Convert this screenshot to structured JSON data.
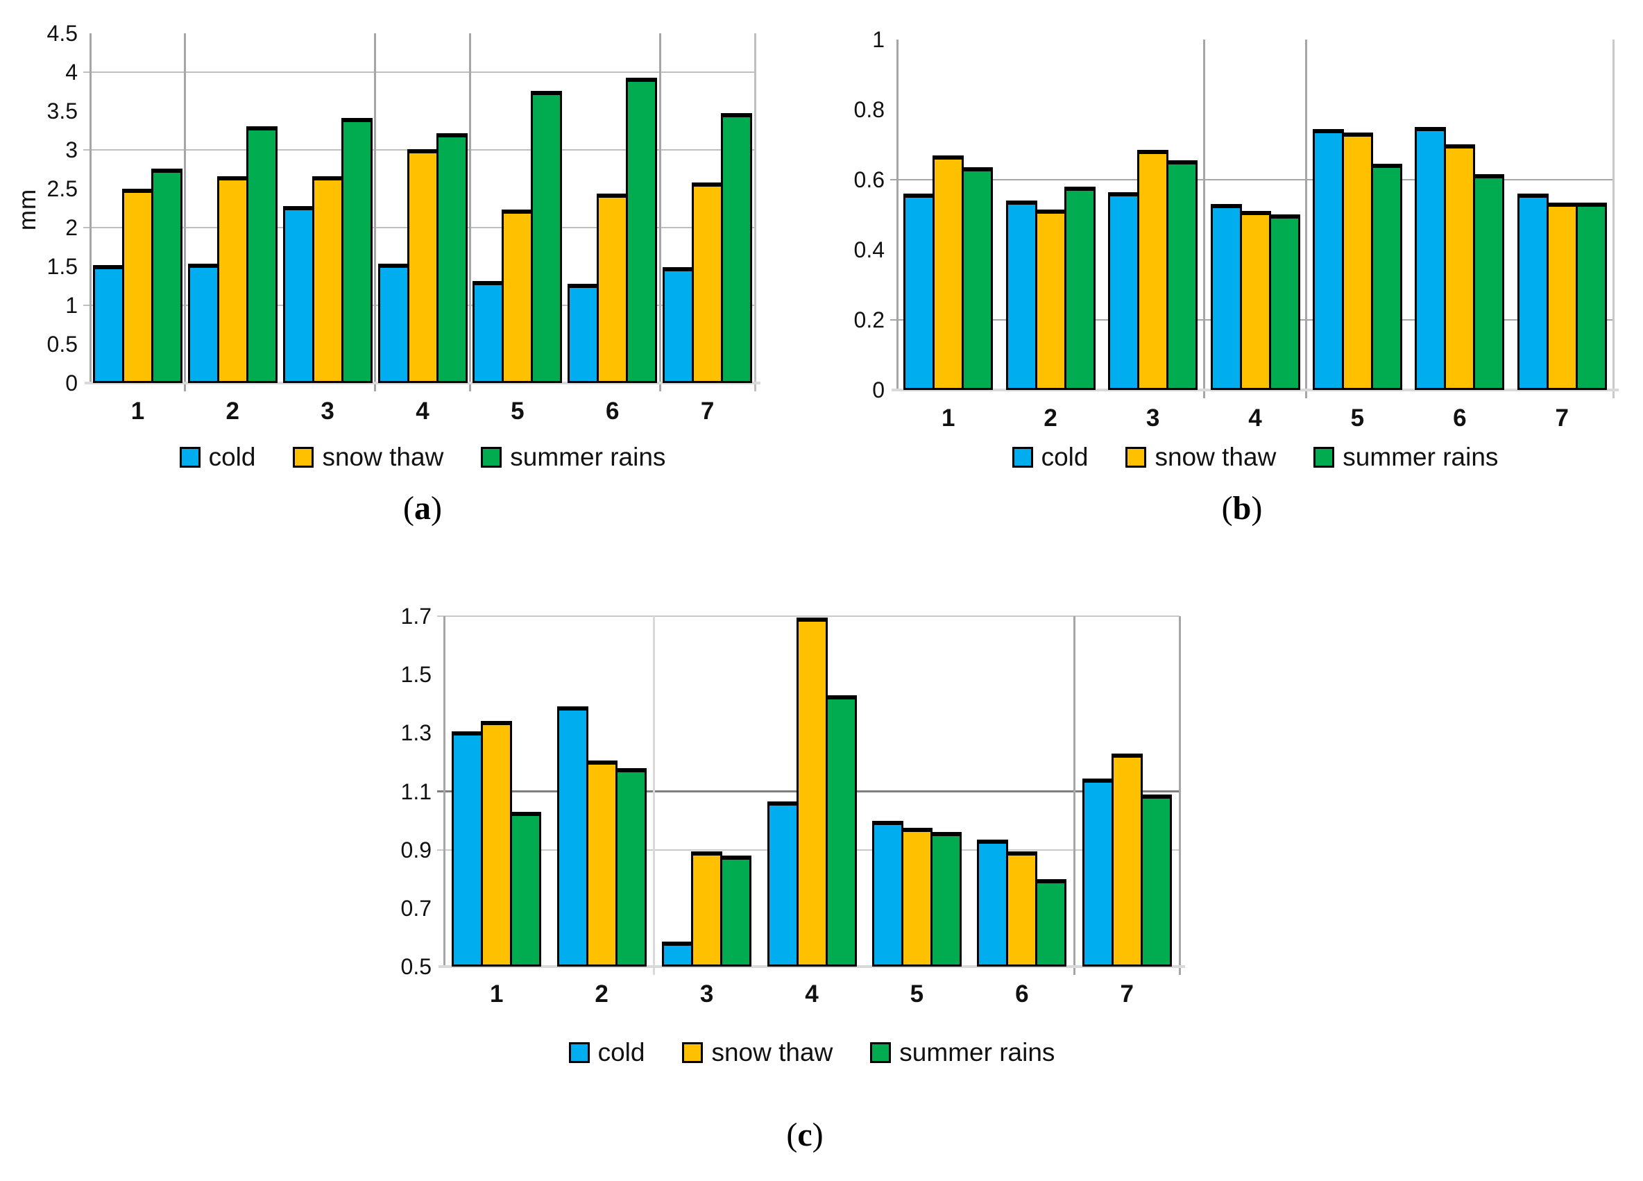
{
  "figure": {
    "background": "#ffffff",
    "panel_captions": [
      {
        "open": "(",
        "letter": "a",
        "close": ")"
      },
      {
        "open": "(",
        "letter": "b",
        "close": ")"
      },
      {
        "open": "(",
        "letter": "c",
        "close": ")"
      }
    ]
  },
  "series_colors": {
    "cold": "#00AEEF",
    "snow_thaw": "#FFC000",
    "summer_rains": "#00AC4F"
  },
  "chart_data": [
    {
      "id": "a",
      "type": "bar",
      "caption": {
        "open": "(",
        "letter": "a",
        "close": ")"
      },
      "ylabel": "mm",
      "categories": [
        "1",
        "2",
        "3",
        "4",
        "5",
        "6",
        "7"
      ],
      "series": [
        {
          "name": "cold",
          "color": "#00AEEF",
          "values": [
            1.52,
            1.54,
            2.28,
            1.54,
            1.31,
            1.28,
            1.49
          ]
        },
        {
          "name": "snow thaw",
          "color": "#FFC000",
          "values": [
            2.5,
            2.66,
            2.66,
            3.01,
            2.23,
            2.44,
            2.58
          ]
        },
        {
          "name": "summer rains",
          "color": "#00AC4F",
          "values": [
            2.76,
            3.3,
            3.41,
            3.21,
            3.76,
            3.93,
            3.47
          ]
        }
      ],
      "ylim": [
        0,
        4.5
      ],
      "yticks": [
        {
          "v": 0,
          "label": "0"
        },
        {
          "v": 0.5,
          "label": "0.5"
        },
        {
          "v": 1,
          "label": "1"
        },
        {
          "v": 1.5,
          "label": "1.5"
        },
        {
          "v": 2,
          "label": "2"
        },
        {
          "v": 2.5,
          "label": "2.5"
        },
        {
          "v": 3,
          "label": "3"
        },
        {
          "v": 3.5,
          "label": "3.5"
        },
        {
          "v": 4,
          "label": "4"
        },
        {
          "v": 4.5,
          "label": "4.5"
        }
      ],
      "hgridlines": [
        {
          "v": 1,
          "color": "#bfbfbf",
          "width": 2
        },
        {
          "v": 2,
          "color": "#bfbfbf",
          "width": 2
        },
        {
          "v": 3,
          "color": "#bfbfbf",
          "width": 2
        },
        {
          "v": 4,
          "color": "#bfbfbf",
          "width": 2
        }
      ],
      "vgridlines": [
        {
          "after": 1,
          "color": "#a6a6a6"
        },
        {
          "after": 3,
          "color": "#a6a6a6"
        },
        {
          "after": 4,
          "color": "#a6a6a6"
        },
        {
          "after": 6,
          "color": "#a6a6a6"
        },
        {
          "after": 7,
          "color": "#bfbfbf"
        }
      ],
      "legend_position": "bottom",
      "grid": true
    },
    {
      "id": "b",
      "type": "bar",
      "caption": {
        "open": "(",
        "letter": "b",
        "close": ")"
      },
      "ylabel": "",
      "categories": [
        "1",
        "2",
        "3",
        "4",
        "5",
        "6",
        "7"
      ],
      "series": [
        {
          "name": "cold",
          "color": "#00AEEF",
          "values": [
            0.56,
            0.54,
            0.565,
            0.53,
            0.745,
            0.75,
            0.56
          ]
        },
        {
          "name": "snow thaw",
          "color": "#FFC000",
          "values": [
            0.67,
            0.515,
            0.685,
            0.51,
            0.735,
            0.7,
            0.535
          ]
        },
        {
          "name": "summer rains",
          "color": "#00AC4F",
          "values": [
            0.635,
            0.58,
            0.655,
            0.5,
            0.645,
            0.615,
            0.535
          ]
        }
      ],
      "ylim": [
        0,
        1
      ],
      "yticks": [
        {
          "v": 0,
          "label": "0"
        },
        {
          "v": 0.2,
          "label": "0.2"
        },
        {
          "v": 0.4,
          "label": "0.4"
        },
        {
          "v": 0.6,
          "label": "0.6"
        },
        {
          "v": 0.8,
          "label": "0.8"
        },
        {
          "v": 1,
          "label": "1"
        }
      ],
      "hgridlines": [
        {
          "v": 0.2,
          "color": "#a6a6a6",
          "width": 2
        },
        {
          "v": 0.6,
          "color": "#a6a6a6",
          "width": 2
        }
      ],
      "vgridlines": [
        {
          "after": 3,
          "color": "#a6a6a6"
        },
        {
          "after": 4,
          "color": "#a6a6a6"
        },
        {
          "after": 7,
          "color": "#c9c9c9"
        }
      ],
      "legend_position": "bottom",
      "grid": true
    },
    {
      "id": "c",
      "type": "bar",
      "caption": {
        "open": "(",
        "letter": "c",
        "close": ")"
      },
      "ylabel": "",
      "categories": [
        "1",
        "2",
        "3",
        "4",
        "5",
        "6",
        "7"
      ],
      "series": [
        {
          "name": "cold",
          "color": "#00AEEF",
          "values": [
            1.305,
            1.39,
            0.585,
            1.065,
            1.0,
            0.935,
            1.145
          ]
        },
        {
          "name": "snow thaw",
          "color": "#FFC000",
          "values": [
            1.34,
            1.205,
            0.895,
            1.695,
            0.975,
            0.895,
            1.23
          ]
        },
        {
          "name": "summer rains",
          "color": "#00AC4F",
          "values": [
            1.03,
            1.18,
            0.88,
            1.43,
            0.96,
            0.8,
            1.09
          ]
        }
      ],
      "ylim": [
        0.5,
        1.7
      ],
      "yticks": [
        {
          "v": 0.5,
          "label": "0.5"
        },
        {
          "v": 0.7,
          "label": "0.7"
        },
        {
          "v": 0.9,
          "label": "0.9"
        },
        {
          "v": 1.1,
          "label": "1.1"
        },
        {
          "v": 1.3,
          "label": "1.3"
        },
        {
          "v": 1.5,
          "label": "1.5"
        },
        {
          "v": 1.7,
          "label": "1.7"
        }
      ],
      "hgridlines": [
        {
          "v": 0.9,
          "color": "#c9c9c9",
          "width": 2
        },
        {
          "v": 1.1,
          "color": "#7f7f7f",
          "width": 3
        },
        {
          "v": 1.7,
          "color": "#c9c9c9",
          "width": 2
        }
      ],
      "vgridlines": [
        {
          "after": 2,
          "color": "#d9d9d9"
        },
        {
          "after": 6,
          "color": "#a6a6a6"
        },
        {
          "after": 7,
          "color": "#a6a6a6"
        }
      ],
      "legend_position": "bottom",
      "grid": true
    }
  ]
}
